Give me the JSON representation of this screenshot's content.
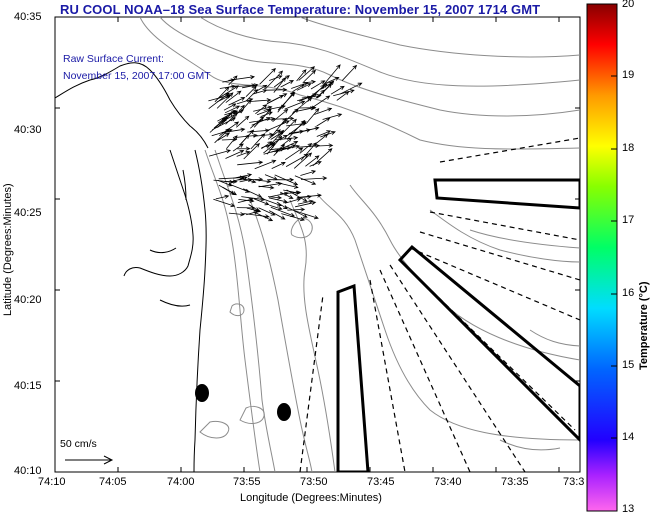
{
  "title": "RU COOL  NOAA–18  Sea Surface Temperature:  November 15, 2007 1714 GMT",
  "current_note": {
    "line1": "Raw Surface Current:",
    "line2": "November 15, 2007 17:00 GMT"
  },
  "axes": {
    "ylabel": "Latitude (Degrees:Minutes)",
    "xlabel": "Longitude (Degrees:Minutes)",
    "y_ticks": [
      "40:35",
      "40:30",
      "40:25",
      "40:20",
      "40:15",
      "40:10"
    ],
    "x_ticks": [
      "74:10",
      "74:05",
      "74:00",
      "73:55",
      "73:50",
      "73:45",
      "73:40",
      "73:35",
      "73:3"
    ]
  },
  "colorbar": {
    "title": "Temperature (°C)",
    "ticks": [
      "20",
      "19",
      "18",
      "17",
      "16",
      "15",
      "14",
      "13"
    ],
    "min": 13,
    "max": 20
  },
  "scale": {
    "label": "50 cm/s"
  },
  "colors": {
    "title": "#1a1aa6",
    "contour": "#8c8c8c",
    "coast": "#000000"
  }
}
